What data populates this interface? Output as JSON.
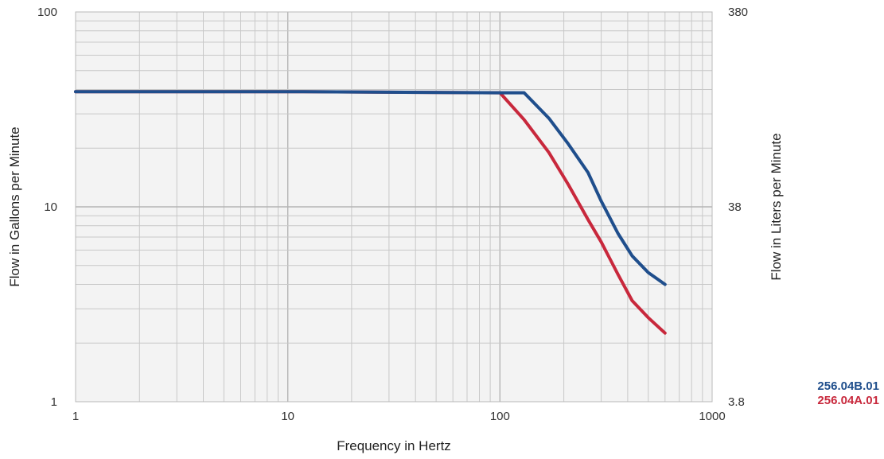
{
  "chart_data": {
    "type": "line",
    "xlabel": "Frequency in Hertz",
    "ylabel": "Flow in Gallons per Minute",
    "ylabel_right": "Flow in Liters per Minute",
    "x_scale": "log",
    "y_scale": "log",
    "xlim": [
      1,
      1000
    ],
    "ylim": [
      1,
      100
    ],
    "x_ticks": [
      "1",
      "10",
      "100",
      "1000"
    ],
    "y_ticks": [
      "1",
      "10",
      "100"
    ],
    "y_ticks_right": [
      "3.8",
      "38",
      "380"
    ],
    "grid": true,
    "legend_position": "right",
    "series": [
      {
        "name": "256.04B.01",
        "color": "#1f4e8c",
        "x": [
          1,
          10,
          100,
          130,
          170,
          210,
          260,
          300,
          360,
          420,
          500,
          600
        ],
        "y": [
          39,
          39,
          38.5,
          38.5,
          28.5,
          21,
          15,
          10.7,
          7.3,
          5.6,
          4.6,
          4.0
        ]
      },
      {
        "name": "256.04A.01",
        "color": "#c8283c",
        "x": [
          1,
          10,
          100,
          130,
          170,
          210,
          260,
          300,
          360,
          420,
          500,
          600
        ],
        "y": [
          39,
          39,
          38.5,
          28,
          19,
          13,
          8.6,
          6.6,
          4.5,
          3.3,
          2.7,
          2.25
        ]
      }
    ]
  }
}
